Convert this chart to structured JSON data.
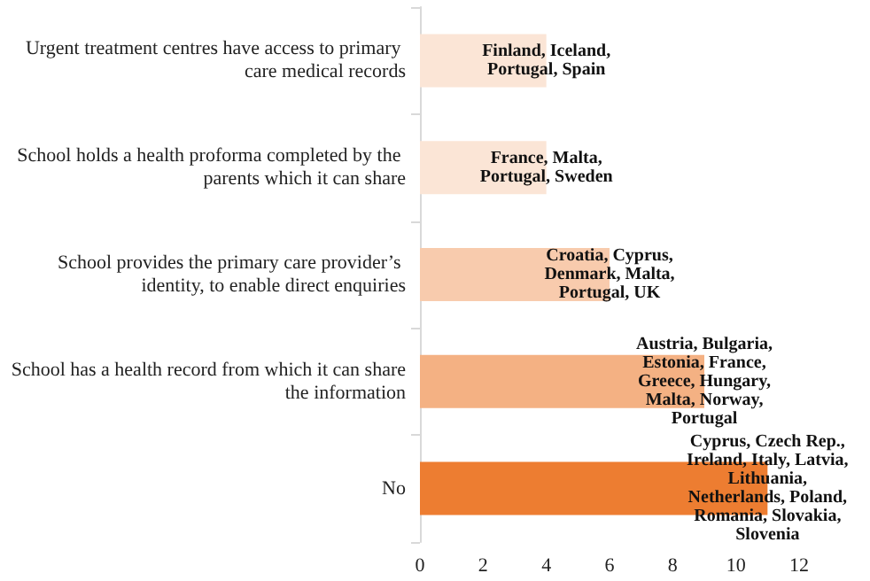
{
  "chart_data": {
    "type": "bar",
    "orientation": "horizontal",
    "categories": [
      "Urgent treatment centres have access to primary care medical records",
      "School holds a health proforma completed by the parents which it can share",
      "School provides the primary care provider’s identity, to enable direct enquiries",
      "School has a health record from which it can share the information",
      "No"
    ],
    "values": [
      4,
      4,
      6,
      9,
      11
    ],
    "colors": [
      "#fbe5d6",
      "#fbe5d6",
      "#f8cbad",
      "#f4b183",
      "#ed7d31"
    ],
    "value_labels": [
      "Finland, Iceland,\nPortugal, Spain",
      "France, Malta,\nPortugal, Sweden",
      "Croatia, Cyprus,\nDenmark, Malta,\nPortugal, UK",
      "Austria, Bulgaria,\nEstonia, France,\nGreece, Hungary,\nMalta, Norway,\nPortugal",
      "Cyprus, Czech Rep.,\nIreland, Italy, Latvia,\nLithuania,\nNetherlands, Poland,\nRomania, Slovakia,\nSlovenia"
    ],
    "xlim": [
      0,
      12
    ],
    "xticks": [
      0,
      2,
      4,
      6,
      8,
      10,
      12
    ],
    "grid": false
  }
}
